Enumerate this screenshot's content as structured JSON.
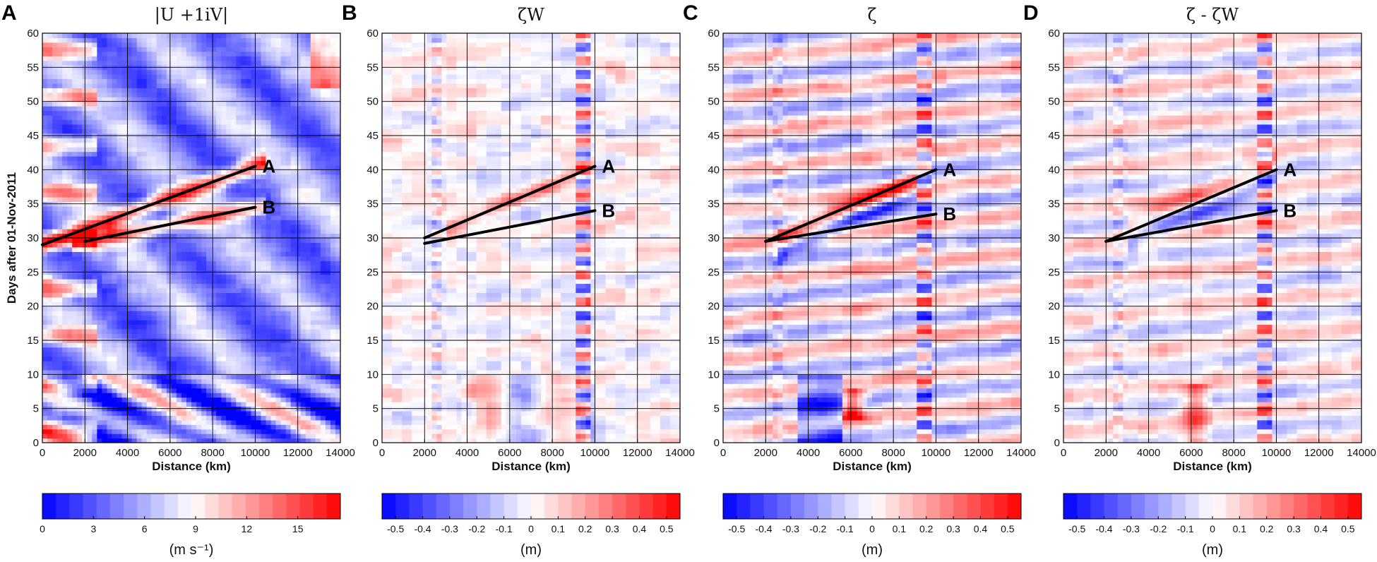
{
  "figure": {
    "shared_ylabel": "Days after 01-Nov-2011"
  },
  "colors": {
    "blue": "#0000ff",
    "white": "#ffffff",
    "red": "#ff0000",
    "grid": "#000000"
  },
  "chart_data": [
    {
      "type": "heatmap",
      "panel": "A",
      "title": "|U +1iV|",
      "xlabel": "Distance (km)",
      "ylabel": "Days after 01-Nov-2011",
      "xlim": [
        0,
        14000
      ],
      "ylim": [
        0,
        60
      ],
      "xticks": [
        0,
        2000,
        4000,
        6000,
        8000,
        10000,
        12000,
        14000
      ],
      "yticks": [
        0,
        5,
        10,
        15,
        20,
        25,
        30,
        35,
        40,
        45,
        50,
        55,
        60
      ],
      "grid": true,
      "field_description": "Speed magnitude; mostly low values (blue) with red bands along propagating features",
      "trajectories": [
        {
          "label": "A",
          "x": [
            0,
            10000
          ],
          "y": [
            29,
            40.5
          ]
        },
        {
          "label": "B",
          "x": [
            2000,
            10000
          ],
          "y": [
            29.5,
            34.5
          ]
        }
      ],
      "colorbar": {
        "ticks": [
          "0",
          "3",
          "6",
          "9",
          "12",
          "15"
        ],
        "tick_values": [
          0,
          3,
          6,
          9,
          12,
          15
        ],
        "range": [
          0,
          17.5
        ],
        "label": "(m s⁻¹)"
      }
    },
    {
      "type": "heatmap",
      "panel": "B",
      "title": "ζW",
      "xlabel": "Distance (km)",
      "ylabel": "",
      "xlim": [
        0,
        14000
      ],
      "ylim": [
        0,
        60
      ],
      "xticks": [
        0,
        2000,
        4000,
        6000,
        8000,
        10000,
        12000,
        14000
      ],
      "yticks": [
        0,
        5,
        10,
        15,
        20,
        25,
        30,
        35,
        40,
        45,
        50,
        55,
        60
      ],
      "grid": true,
      "field_description": "Mostly near-zero field with weak anomalies",
      "trajectories": [
        {
          "label": "A",
          "x": [
            2000,
            10000
          ],
          "y": [
            30,
            40.5
          ]
        },
        {
          "label": "B",
          "x": [
            2000,
            10000
          ],
          "y": [
            29.2,
            34
          ]
        }
      ],
      "colorbar": {
        "ticks": [
          "-0.5",
          "-0.4",
          "-0.3",
          "-0.2",
          "-0.1",
          "0",
          "0.1",
          "0.2",
          "0.3",
          "0.4",
          "0.5"
        ],
        "tick_values": [
          -0.5,
          -0.4,
          -0.3,
          -0.2,
          -0.1,
          0,
          0.1,
          0.2,
          0.3,
          0.4,
          0.5
        ],
        "range": [
          -0.55,
          0.55
        ],
        "label": "(m)"
      }
    },
    {
      "type": "heatmap",
      "panel": "C",
      "title": "ζ",
      "xlabel": "Distance (km)",
      "ylabel": "",
      "xlim": [
        0,
        14000
      ],
      "ylim": [
        0,
        60
      ],
      "xticks": [
        0,
        2000,
        4000,
        6000,
        8000,
        10000,
        12000,
        14000
      ],
      "yticks": [
        0,
        5,
        10,
        15,
        20,
        25,
        30,
        35,
        40,
        45,
        50,
        55,
        60
      ],
      "grid": true,
      "field_description": "Alternating positive/negative bands with strong anomalies along trajectories",
      "trajectories": [
        {
          "label": "A",
          "x": [
            2000,
            10000
          ],
          "y": [
            29.5,
            40
          ]
        },
        {
          "label": "B",
          "x": [
            2000,
            10000
          ],
          "y": [
            29.5,
            33.5
          ]
        }
      ],
      "colorbar": {
        "ticks": [
          "-0.5",
          "-0.4",
          "-0.3",
          "-0.2",
          "-0.1",
          "0",
          "0.1",
          "0.2",
          "0.3",
          "0.4",
          "0.5"
        ],
        "tick_values": [
          -0.5,
          -0.4,
          -0.3,
          -0.2,
          -0.1,
          0,
          0.1,
          0.2,
          0.3,
          0.4,
          0.5
        ],
        "range": [
          -0.55,
          0.55
        ],
        "label": "(m)"
      }
    },
    {
      "type": "heatmap",
      "panel": "D",
      "title": "ζ - ζW",
      "xlabel": "Distance (km)",
      "ylabel": "",
      "xlim": [
        0,
        14000
      ],
      "ylim": [
        0,
        60
      ],
      "xticks": [
        0,
        2000,
        4000,
        6000,
        8000,
        10000,
        12000,
        14000
      ],
      "yticks": [
        0,
        5,
        10,
        15,
        20,
        25,
        30,
        35,
        40,
        45,
        50,
        55,
        60
      ],
      "grid": true,
      "field_description": "Difference field, moderate alternating bands",
      "trajectories": [
        {
          "label": "A",
          "x": [
            2000,
            10000
          ],
          "y": [
            29.5,
            40
          ]
        },
        {
          "label": "B",
          "x": [
            2000,
            10000
          ],
          "y": [
            29.5,
            34
          ]
        }
      ],
      "colorbar": {
        "ticks": [
          "-0.5",
          "-0.4",
          "-0.3",
          "-0.2",
          "-0.1",
          "0",
          "0.1",
          "0.2",
          "0.3",
          "0.4",
          "0.5"
        ],
        "tick_values": [
          -0.5,
          -0.4,
          -0.3,
          -0.2,
          -0.1,
          0,
          0.1,
          0.2,
          0.3,
          0.4,
          0.5
        ],
        "range": [
          -0.55,
          0.55
        ],
        "label": "(m)"
      }
    }
  ]
}
